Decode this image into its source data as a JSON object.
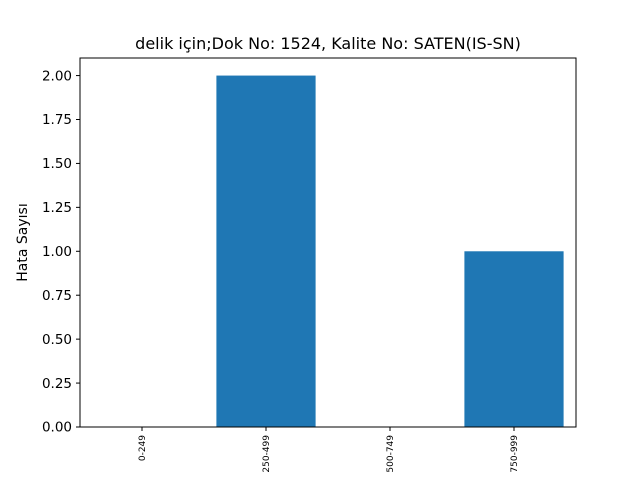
{
  "chart_data": {
    "type": "bar",
    "title": "delik için;Dok No: 1524, Kalite No: SATEN(IS-SN)",
    "xlabel": "",
    "ylabel": "Hata Sayısı",
    "categories": [
      "0-249",
      "250-499",
      "500-749",
      "750-999"
    ],
    "values": [
      0,
      2,
      0,
      1
    ],
    "ylim": [
      0,
      2.1
    ],
    "yticks": [
      "0.00",
      "0.25",
      "0.50",
      "0.75",
      "1.00",
      "1.25",
      "1.50",
      "1.75",
      "2.00"
    ],
    "grid": false,
    "legend": "none",
    "colors": {
      "bar": "#1f77b4"
    }
  }
}
